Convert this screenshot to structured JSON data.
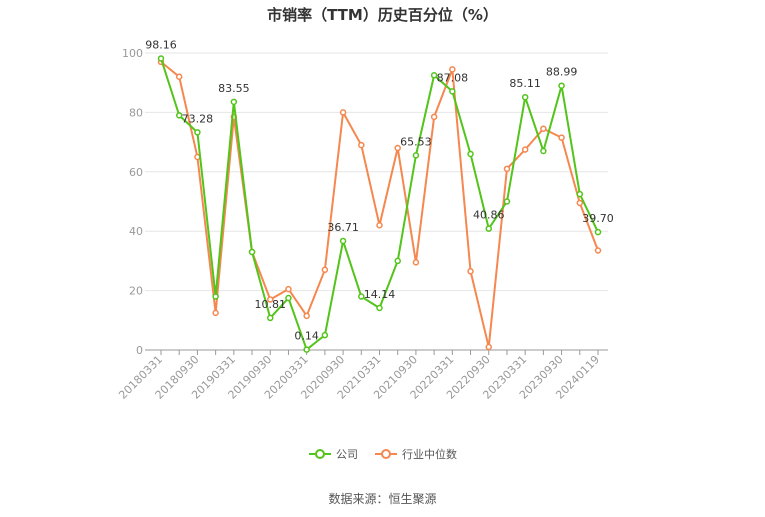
{
  "chart_data": {
    "type": "line",
    "title": "市销率（TTM）历史百分位（%）",
    "xlabel": "",
    "ylabel": "",
    "ylim": [
      0,
      100
    ],
    "yticks": [
      "0",
      "20",
      "40",
      "60",
      "80",
      "100"
    ],
    "xtick_labels": [
      "20180331",
      "20180930",
      "20190331",
      "20190930",
      "20200331",
      "20200930",
      "20210331",
      "20210930",
      "20220331",
      "20220930",
      "20230331",
      "20230930",
      "20240119"
    ],
    "grid": true,
    "legend_position": "bottom",
    "series": [
      {
        "name": "公司",
        "color": "#52c41a",
        "values": [
          98.16,
          79,
          73.28,
          18,
          83.55,
          33,
          10.81,
          17.5,
          0.14,
          5,
          36.71,
          18,
          14.14,
          30,
          65.53,
          92.5,
          87.08,
          66,
          40.86,
          50,
          85.11,
          67,
          88.99,
          52.5,
          39.7
        ],
        "labels": [
          "98.16",
          "",
          "73.28",
          "",
          "83.55",
          "",
          "10.81",
          "",
          "0.14",
          "",
          "36.71",
          "",
          "14.14",
          "",
          "65.53",
          "",
          "87.08",
          "",
          "40.86",
          "",
          "85.11",
          "",
          "88.99",
          "",
          "39.70"
        ]
      },
      {
        "name": "行业中位数",
        "color": "#f5874f",
        "values": [
          97,
          92,
          65,
          12.5,
          78.5,
          33,
          17,
          20.5,
          11.5,
          27,
          80,
          69,
          42,
          68,
          29.5,
          78.5,
          94.5,
          26.5,
          1,
          61,
          67.5,
          74.5,
          71.5,
          49.5,
          33.5
        ]
      }
    ]
  },
  "footer": {
    "source": "数据来源：恒生聚源"
  }
}
